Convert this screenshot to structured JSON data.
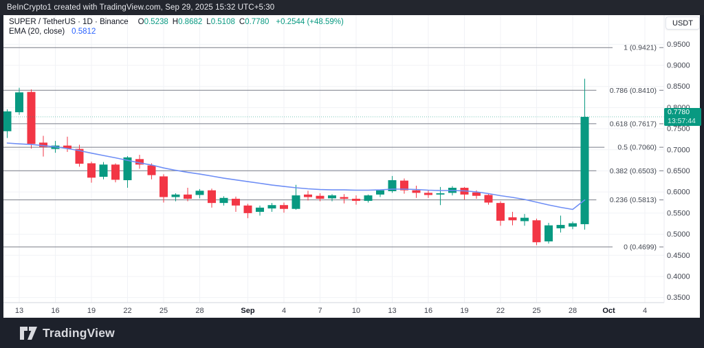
{
  "header": {
    "text": "BeInCrypto1 created with TradingView.com, Sep 29, 2025 15:32 UTC+5:30"
  },
  "legend": {
    "symbol": "SUPER / TetherUS · 1D · Binance",
    "ohlc": [
      {
        "k": "O",
        "v": "0.5238"
      },
      {
        "k": "H",
        "v": "0.8682"
      },
      {
        "k": "L",
        "v": "0.5108"
      },
      {
        "k": "C",
        "v": "0.7780"
      }
    ],
    "change": "+0.2544 (+48.59%)",
    "indicator": {
      "name": "EMA (20, close)",
      "value": "0.5812"
    }
  },
  "axis": {
    "currency": "USDT",
    "price_ticks": [
      0.95,
      0.9,
      0.85,
      0.8,
      0.75,
      0.7,
      0.65,
      0.6,
      0.55,
      0.5,
      0.45,
      0.4,
      0.35
    ],
    "x_labels": [
      {
        "t": "13",
        "i": 1
      },
      {
        "t": "16",
        "i": 4
      },
      {
        "t": "19",
        "i": 7
      },
      {
        "t": "22",
        "i": 10
      },
      {
        "t": "25",
        "i": 13
      },
      {
        "t": "28",
        "i": 16
      },
      {
        "t": "Sep",
        "i": 20,
        "major": true
      },
      {
        "t": "4",
        "i": 23
      },
      {
        "t": "7",
        "i": 26
      },
      {
        "t": "10",
        "i": 29
      },
      {
        "t": "13",
        "i": 32
      },
      {
        "t": "16",
        "i": 35
      },
      {
        "t": "19",
        "i": 38
      },
      {
        "t": "22",
        "i": 41
      },
      {
        "t": "25",
        "i": 44
      },
      {
        "t": "28",
        "i": 47
      },
      {
        "t": "Oct",
        "i": 50,
        "major": true
      },
      {
        "t": "4",
        "i": 53
      }
    ]
  },
  "price_line": {
    "value": "0.7780",
    "countdown": "13:57:44"
  },
  "footer": {
    "brand": "TradingView"
  },
  "colors": {
    "up": "#089981",
    "down": "#f23645",
    "ema": "#6e8ef5",
    "grid": "#f0f2f6",
    "fib_line": "#787b86",
    "fib_text": "#40454f",
    "axis_text": "#40444f",
    "axis_text_major": "#131722",
    "separator": "#d1d4dc",
    "price_line": "#089981",
    "badge_bg": "#089981"
  },
  "chart_data": {
    "type": "candlestick",
    "title": "SUPER / TetherUS - 1D - Binance",
    "interval": "1D",
    "exchange": "Binance",
    "quote_currency": "USDT",
    "y_axis": {
      "min": 0.338,
      "max": 1.019,
      "grid_step": 0.05
    },
    "legend_last": {
      "open": 0.5238,
      "high": 0.8682,
      "low": 0.5108,
      "close": 0.778,
      "change": "+0.2544 (+48.59%)"
    },
    "last_price": 0.778,
    "ema_period": 20,
    "fib_levels": [
      {
        "level": "1",
        "price": 0.9421
      },
      {
        "level": "0.786",
        "price": 0.841
      },
      {
        "level": "0.618",
        "price": 0.7617
      },
      {
        "level": "0.5",
        "price": 0.706
      },
      {
        "level": "0.382",
        "price": 0.6503
      },
      {
        "level": "0.236",
        "price": 0.5813
      },
      {
        "level": "0",
        "price": 0.4699
      }
    ],
    "candles": [
      {
        "d": "Aug 12",
        "o": 0.744,
        "h": 0.796,
        "l": 0.728,
        "c": 0.791
      },
      {
        "d": "Aug 13",
        "o": 0.789,
        "h": 0.847,
        "l": 0.783,
        "c": 0.836
      },
      {
        "d": "Aug 14",
        "o": 0.837,
        "h": 0.843,
        "l": 0.703,
        "c": 0.714
      },
      {
        "d": "Aug 15",
        "o": 0.717,
        "h": 0.733,
        "l": 0.684,
        "c": 0.707
      },
      {
        "d": "Aug 16",
        "o": 0.702,
        "h": 0.721,
        "l": 0.693,
        "c": 0.71
      },
      {
        "d": "Aug 17",
        "o": 0.71,
        "h": 0.731,
        "l": 0.695,
        "c": 0.703
      },
      {
        "d": "Aug 18",
        "o": 0.702,
        "h": 0.712,
        "l": 0.66,
        "c": 0.667
      },
      {
        "d": "Aug 19",
        "o": 0.668,
        "h": 0.672,
        "l": 0.622,
        "c": 0.634
      },
      {
        "d": "Aug 20",
        "o": 0.636,
        "h": 0.671,
        "l": 0.63,
        "c": 0.665
      },
      {
        "d": "Aug 21",
        "o": 0.665,
        "h": 0.668,
        "l": 0.623,
        "c": 0.629
      },
      {
        "d": "Aug 22",
        "o": 0.628,
        "h": 0.685,
        "l": 0.61,
        "c": 0.682
      },
      {
        "d": "Aug 23",
        "o": 0.678,
        "h": 0.688,
        "l": 0.655,
        "c": 0.665
      },
      {
        "d": "Aug 24",
        "o": 0.663,
        "h": 0.668,
        "l": 0.63,
        "c": 0.64
      },
      {
        "d": "Aug 25",
        "o": 0.637,
        "h": 0.642,
        "l": 0.575,
        "c": 0.588
      },
      {
        "d": "Aug 26",
        "o": 0.588,
        "h": 0.597,
        "l": 0.578,
        "c": 0.594
      },
      {
        "d": "Aug 27",
        "o": 0.594,
        "h": 0.61,
        "l": 0.578,
        "c": 0.584
      },
      {
        "d": "Aug 28",
        "o": 0.593,
        "h": 0.607,
        "l": 0.585,
        "c": 0.603
      },
      {
        "d": "Aug 29",
        "o": 0.604,
        "h": 0.608,
        "l": 0.563,
        "c": 0.574
      },
      {
        "d": "Aug 30",
        "o": 0.574,
        "h": 0.59,
        "l": 0.568,
        "c": 0.586
      },
      {
        "d": "Aug 31",
        "o": 0.584,
        "h": 0.589,
        "l": 0.553,
        "c": 0.568
      },
      {
        "d": "Sep 1",
        "o": 0.568,
        "h": 0.572,
        "l": 0.538,
        "c": 0.55
      },
      {
        "d": "Sep 2",
        "o": 0.553,
        "h": 0.568,
        "l": 0.544,
        "c": 0.563
      },
      {
        "d": "Sep 3",
        "o": 0.561,
        "h": 0.574,
        "l": 0.553,
        "c": 0.569
      },
      {
        "d": "Sep 4",
        "o": 0.569,
        "h": 0.575,
        "l": 0.551,
        "c": 0.56
      },
      {
        "d": "Sep 5",
        "o": 0.56,
        "h": 0.617,
        "l": 0.558,
        "c": 0.592
      },
      {
        "d": "Sep 6",
        "o": 0.594,
        "h": 0.603,
        "l": 0.58,
        "c": 0.588
      },
      {
        "d": "Sep 7",
        "o": 0.591,
        "h": 0.597,
        "l": 0.578,
        "c": 0.584
      },
      {
        "d": "Sep 8",
        "o": 0.585,
        "h": 0.595,
        "l": 0.578,
        "c": 0.592
      },
      {
        "d": "Sep 9",
        "o": 0.588,
        "h": 0.595,
        "l": 0.573,
        "c": 0.584
      },
      {
        "d": "Sep 10",
        "o": 0.584,
        "h": 0.592,
        "l": 0.57,
        "c": 0.579
      },
      {
        "d": "Sep 11",
        "o": 0.579,
        "h": 0.594,
        "l": 0.575,
        "c": 0.592
      },
      {
        "d": "Sep 12",
        "o": 0.594,
        "h": 0.606,
        "l": 0.588,
        "c": 0.604
      },
      {
        "d": "Sep 13",
        "o": 0.602,
        "h": 0.638,
        "l": 0.598,
        "c": 0.628
      },
      {
        "d": "Sep 14",
        "o": 0.627,
        "h": 0.632,
        "l": 0.596,
        "c": 0.604
      },
      {
        "d": "Sep 15",
        "o": 0.604,
        "h": 0.615,
        "l": 0.586,
        "c": 0.598
      },
      {
        "d": "Sep 16",
        "o": 0.598,
        "h": 0.604,
        "l": 0.586,
        "c": 0.593
      },
      {
        "d": "Sep 17",
        "o": 0.594,
        "h": 0.612,
        "l": 0.569,
        "c": 0.597
      },
      {
        "d": "Sep 18",
        "o": 0.598,
        "h": 0.614,
        "l": 0.592,
        "c": 0.61
      },
      {
        "d": "Sep 19",
        "o": 0.61,
        "h": 0.612,
        "l": 0.582,
        "c": 0.594
      },
      {
        "d": "Sep 20",
        "o": 0.599,
        "h": 0.604,
        "l": 0.584,
        "c": 0.591
      },
      {
        "d": "Sep 21",
        "o": 0.593,
        "h": 0.596,
        "l": 0.57,
        "c": 0.575
      },
      {
        "d": "Sep 22",
        "o": 0.574,
        "h": 0.578,
        "l": 0.52,
        "c": 0.532
      },
      {
        "d": "Sep 23",
        "o": 0.54,
        "h": 0.553,
        "l": 0.521,
        "c": 0.533
      },
      {
        "d": "Sep 24",
        "o": 0.531,
        "h": 0.548,
        "l": 0.52,
        "c": 0.539
      },
      {
        "d": "Sep 25",
        "o": 0.533,
        "h": 0.537,
        "l": 0.474,
        "c": 0.481
      },
      {
        "d": "Sep 26",
        "o": 0.483,
        "h": 0.527,
        "l": 0.478,
        "c": 0.521
      },
      {
        "d": "Sep 27",
        "o": 0.514,
        "h": 0.544,
        "l": 0.504,
        "c": 0.522
      },
      {
        "d": "Sep 28",
        "o": 0.518,
        "h": 0.53,
        "l": 0.512,
        "c": 0.526
      },
      {
        "d": "Sep 29",
        "o": 0.5238,
        "h": 0.8682,
        "l": 0.5108,
        "c": 0.778
      }
    ],
    "ema20": [
      0.716,
      0.714,
      0.7125,
      0.71,
      0.707,
      0.703,
      0.698,
      0.692,
      0.6865,
      0.681,
      0.675,
      0.669,
      0.664,
      0.657,
      0.6515,
      0.6466,
      0.6425,
      0.6377,
      0.6328,
      0.6287,
      0.6246,
      0.6206,
      0.6165,
      0.6132,
      0.61,
      0.6076,
      0.6059,
      0.6051,
      0.6051,
      0.6043,
      0.6043,
      0.6051,
      0.6068,
      0.6068,
      0.6059,
      0.6043,
      0.6035,
      0.6035,
      0.6027,
      0.6003,
      0.5962,
      0.5913,
      0.5872,
      0.5824,
      0.5758,
      0.5693,
      0.5636,
      0.5587,
      0.5812
    ]
  }
}
